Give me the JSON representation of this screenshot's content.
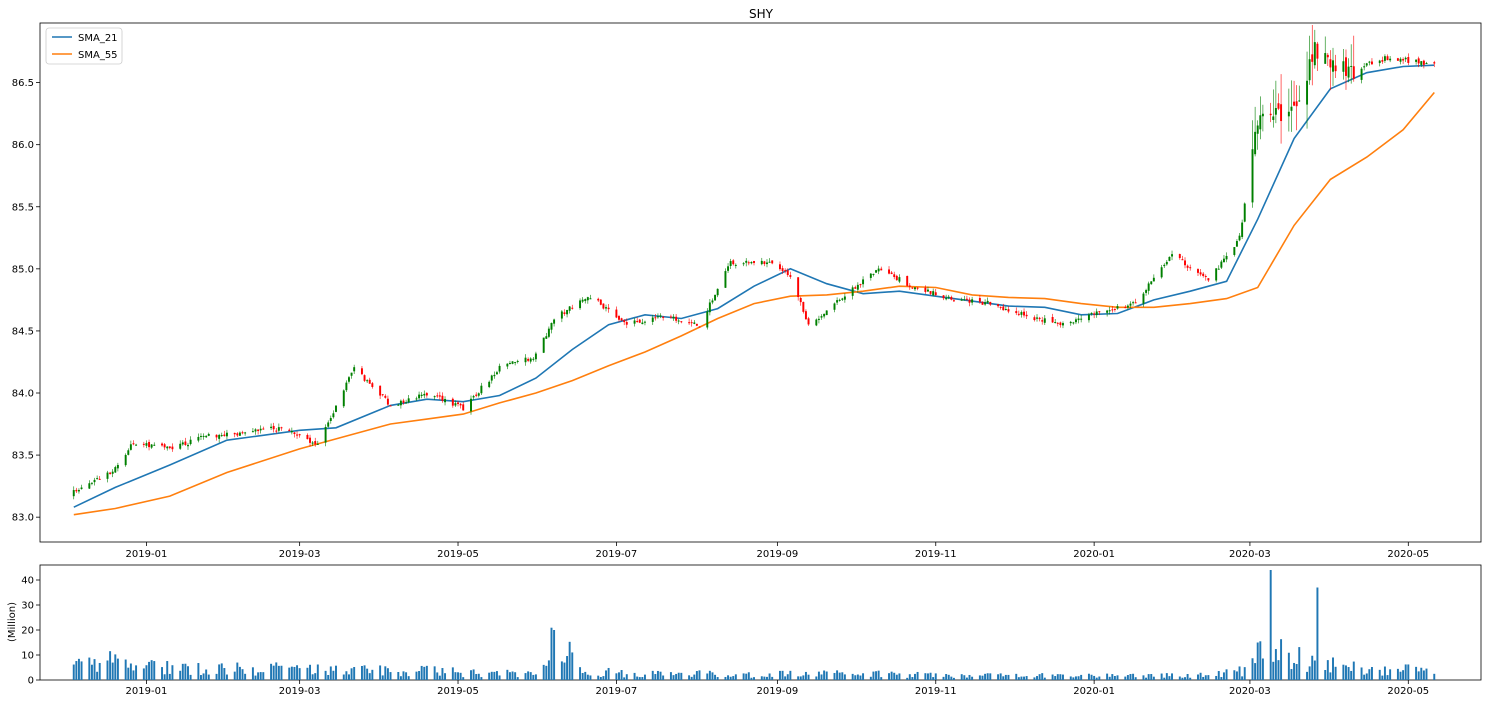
{
  "chart_data": [
    {
      "type": "candlestick",
      "title": "SHY",
      "xlabel": "",
      "ylabel": "",
      "ylim": [
        82.8,
        86.98
      ],
      "x_range": [
        "2018-11-21",
        "2020-05-29"
      ],
      "x_ticks": [
        "2019-01",
        "2019-03",
        "2019-05",
        "2019-07",
        "2019-09",
        "2019-11",
        "2020-01",
        "2020-03",
        "2020-05"
      ],
      "y_ticks": [
        83.0,
        83.5,
        84.0,
        84.5,
        85.0,
        85.5,
        86.0,
        86.5
      ],
      "legend": {
        "placement": "top-left",
        "entries": [
          "SMA_21",
          "SMA_55"
        ]
      },
      "up_color": "#008000",
      "down_color": "#ff0000",
      "close_trend": {
        "note_dates": "piecewise anchor closes used to render candles",
        "dates": [
          "2018-12-04",
          "2018-12-18",
          "2018-12-27",
          "2019-01-10",
          "2019-01-24",
          "2019-02-08",
          "2019-02-22",
          "2019-03-08",
          "2019-03-22",
          "2019-04-05",
          "2019-04-19",
          "2019-05-03",
          "2019-05-17",
          "2019-05-31",
          "2019-06-07",
          "2019-06-21",
          "2019-07-05",
          "2019-07-19",
          "2019-08-02",
          "2019-08-14",
          "2019-08-28",
          "2019-09-06",
          "2019-09-13",
          "2019-09-27",
          "2019-10-10",
          "2019-10-24",
          "2019-11-08",
          "2019-11-22",
          "2019-12-06",
          "2019-12-20",
          "2020-01-03",
          "2020-01-17",
          "2020-01-31",
          "2020-02-14",
          "2020-02-26",
          "2020-03-04",
          "2020-03-09",
          "2020-03-18",
          "2020-03-26",
          "2020-04-09",
          "2020-04-23",
          "2020-05-11"
        ],
        "closes": [
          83.2,
          83.35,
          83.6,
          83.55,
          83.65,
          83.68,
          83.72,
          83.58,
          84.2,
          83.9,
          84.0,
          83.88,
          84.2,
          84.3,
          84.6,
          84.78,
          84.55,
          84.62,
          84.55,
          85.05,
          85.05,
          84.95,
          84.55,
          84.78,
          85.0,
          84.85,
          84.75,
          84.72,
          84.62,
          84.55,
          84.65,
          84.72,
          85.12,
          84.9,
          85.25,
          86.2,
          86.2,
          86.3,
          86.75,
          86.6,
          86.7,
          86.65
        ]
      },
      "series": [
        {
          "name": "SMA_21",
          "color": "#1f77b4",
          "dates": [
            "2018-12-04",
            "2018-12-20",
            "2019-01-10",
            "2019-02-01",
            "2019-03-01",
            "2019-03-15",
            "2019-04-05",
            "2019-04-19",
            "2019-05-03",
            "2019-05-17",
            "2019-05-31",
            "2019-06-14",
            "2019-06-28",
            "2019-07-12",
            "2019-07-26",
            "2019-08-09",
            "2019-08-23",
            "2019-09-06",
            "2019-09-20",
            "2019-10-04",
            "2019-10-18",
            "2019-11-01",
            "2019-11-15",
            "2019-11-29",
            "2019-12-13",
            "2019-12-27",
            "2020-01-10",
            "2020-01-24",
            "2020-02-07",
            "2020-02-21",
            "2020-03-04",
            "2020-03-18",
            "2020-04-01",
            "2020-04-15",
            "2020-04-29",
            "2020-05-11"
          ],
          "values": [
            83.08,
            83.24,
            83.42,
            83.62,
            83.7,
            83.72,
            83.9,
            83.95,
            83.93,
            83.98,
            84.12,
            84.35,
            84.55,
            84.63,
            84.6,
            84.68,
            84.86,
            85.0,
            84.88,
            84.8,
            84.82,
            84.78,
            84.74,
            84.7,
            84.69,
            84.63,
            84.64,
            84.75,
            84.82,
            84.9,
            85.4,
            86.05,
            86.45,
            86.58,
            86.63,
            86.64
          ]
        },
        {
          "name": "SMA_55",
          "color": "#ff7f0e",
          "dates": [
            "2018-12-04",
            "2018-12-20",
            "2019-01-10",
            "2019-02-01",
            "2019-03-01",
            "2019-03-15",
            "2019-04-05",
            "2019-04-19",
            "2019-05-03",
            "2019-05-17",
            "2019-05-31",
            "2019-06-14",
            "2019-06-28",
            "2019-07-12",
            "2019-07-26",
            "2019-08-09",
            "2019-08-23",
            "2019-09-06",
            "2019-09-20",
            "2019-10-04",
            "2019-10-18",
            "2019-11-01",
            "2019-11-15",
            "2019-11-29",
            "2019-12-13",
            "2019-12-27",
            "2020-01-10",
            "2020-01-24",
            "2020-02-07",
            "2020-02-21",
            "2020-03-04",
            "2020-03-18",
            "2020-04-01",
            "2020-04-15",
            "2020-04-29",
            "2020-05-11"
          ],
          "values": [
            83.02,
            83.07,
            83.17,
            83.36,
            83.55,
            83.63,
            83.75,
            83.79,
            83.83,
            83.92,
            84.0,
            84.1,
            84.22,
            84.33,
            84.46,
            84.6,
            84.72,
            84.78,
            84.79,
            84.82,
            84.86,
            84.85,
            84.79,
            84.77,
            84.76,
            84.72,
            84.69,
            84.69,
            84.72,
            84.76,
            84.85,
            85.35,
            85.72,
            85.9,
            86.12,
            86.42
          ]
        }
      ]
    },
    {
      "type": "bar",
      "title": "",
      "ylabel": "(Million)",
      "ylim": [
        0,
        46
      ],
      "y_ticks": [
        0,
        10,
        20,
        30,
        40
      ],
      "x_ticks": [
        "2019-01",
        "2019-03",
        "2019-05",
        "2019-07",
        "2019-09",
        "2019-11",
        "2020-01",
        "2020-03",
        "2020-05"
      ],
      "bar_color": "#1f77b4",
      "volume_trend": {
        "dates": [
          "2018-12-04",
          "2018-12-20",
          "2019-01-15",
          "2019-02-15",
          "2019-03-15",
          "2019-04-15",
          "2019-05-15",
          "2019-05-31",
          "2019-06-05",
          "2019-06-08",
          "2019-06-20",
          "2019-07-15",
          "2019-08-15",
          "2019-09-15",
          "2019-10-15",
          "2019-11-15",
          "2019-12-15",
          "2020-01-15",
          "2020-02-15",
          "2020-02-28",
          "2020-03-06",
          "2020-03-10",
          "2020-03-20",
          "2020-03-26",
          "2020-03-30",
          "2020-04-15",
          "2020-05-11"
        ],
        "volumes_million": [
          6,
          8,
          5,
          5,
          4,
          4,
          2.5,
          3,
          12,
          18,
          3.5,
          2.5,
          2.5,
          2.5,
          2.5,
          2,
          2,
          2,
          2,
          4,
          14,
          12,
          10,
          8,
          7,
          5,
          4
        ]
      },
      "highlights": [
        {
          "date": "2019-06-07",
          "value": 20
        },
        {
          "date": "2020-03-09",
          "value": 44
        },
        {
          "date": "2020-03-27",
          "value": 37
        },
        {
          "date": "2020-03-04",
          "value": 15
        }
      ]
    }
  ]
}
